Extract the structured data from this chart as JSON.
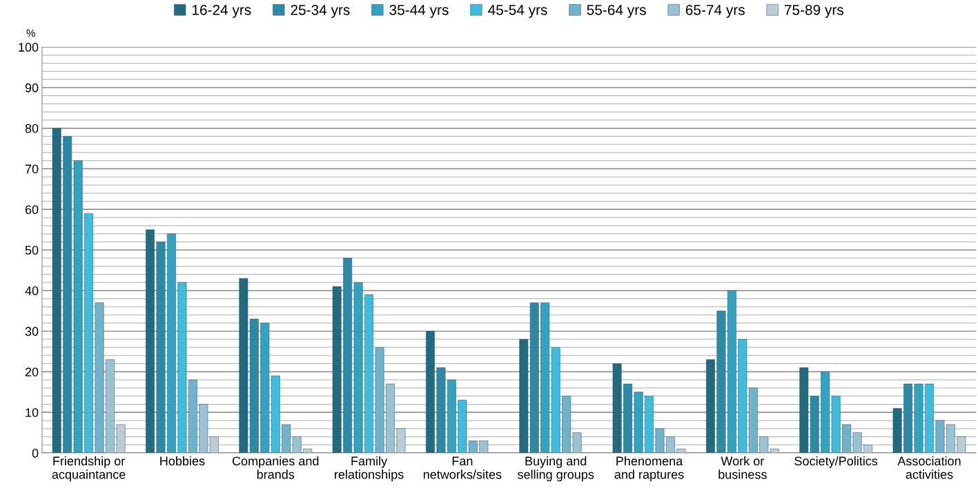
{
  "chart_data": {
    "type": "bar",
    "ylabel": "%",
    "categories": [
      "Friendship or\nacquaintance",
      "Hobbies",
      "Companies and\nbrands",
      "Family\nrelationships",
      "Fan\nnetworks/sites",
      "Buying and\nselling groups",
      "Phenomena\nand raptures",
      "Work or\nbusiness",
      "Society/Politics",
      "Association\nactivities"
    ],
    "series": [
      {
        "name": "16-24 yrs",
        "color": "#1f6b80",
        "values": [
          80,
          55,
          43,
          41,
          30,
          28,
          22,
          23,
          21,
          11
        ]
      },
      {
        "name": "25-34 yrs",
        "color": "#2a8aa6",
        "values": [
          78,
          52,
          33,
          48,
          21,
          37,
          17,
          35,
          14,
          17
        ]
      },
      {
        "name": "35-44 yrs",
        "color": "#2ea3c2",
        "values": [
          72,
          54,
          32,
          42,
          18,
          37,
          15,
          40,
          20,
          17
        ]
      },
      {
        "name": "45-54 yrs",
        "color": "#3bbde0",
        "values": [
          59,
          42,
          19,
          39,
          13,
          26,
          14,
          28,
          14,
          17
        ]
      },
      {
        "name": "55-64 yrs",
        "color": "#6eb3cc",
        "values": [
          37,
          18,
          7,
          26,
          3,
          14,
          6,
          16,
          7,
          8
        ]
      },
      {
        "name": "65-74 yrs",
        "color": "#98c3d4",
        "values": [
          23,
          12,
          4,
          17,
          3,
          5,
          4,
          4,
          5,
          7
        ]
      },
      {
        "name": "75-89 yrs",
        "color": "#b8cdd6",
        "values": [
          7,
          4,
          1,
          6,
          null,
          null,
          1,
          1,
          2,
          4
        ]
      }
    ],
    "ylim": [
      0,
      100
    ],
    "yticks": [
      0,
      {
        "value": 2,
        "label": null
      },
      {
        "value": 4,
        "label": null
      },
      {
        "value": 6,
        "label": null
      },
      {
        "value": 8,
        "label": null
      },
      10,
      {
        "value": 12,
        "label": null
      },
      {
        "value": 14,
        "label": null
      },
      {
        "value": 16,
        "label": null
      },
      {
        "value": 18,
        "label": null
      },
      20,
      {
        "value": 22,
        "label": null
      },
      {
        "value": 24,
        "label": null
      },
      {
        "value": 26,
        "label": null
      },
      {
        "value": 28,
        "label": null
      },
      30,
      {
        "value": 32,
        "label": null
      },
      {
        "value": 34,
        "label": null
      },
      {
        "value": 36,
        "label": null
      },
      {
        "value": 38,
        "label": null
      },
      40,
      {
        "value": 42,
        "label": null
      },
      {
        "value": 44,
        "label": null
      },
      {
        "value": 46,
        "label": null
      },
      {
        "value": 48,
        "label": null
      },
      50,
      {
        "value": 52,
        "label": null
      },
      {
        "value": 54,
        "label": null
      },
      {
        "value": 56,
        "label": null
      },
      {
        "value": 58,
        "label": null
      },
      60,
      {
        "value": 62,
        "label": null
      },
      {
        "value": 64,
        "label": null
      },
      {
        "value": 66,
        "label": null
      },
      {
        "value": 68,
        "label": null
      },
      70,
      {
        "value": 72,
        "label": null
      },
      {
        "value": 74,
        "label": null
      },
      {
        "value": 76,
        "label": null
      },
      {
        "value": 78,
        "label": null
      },
      80,
      {
        "value": 82,
        "label": null
      },
      {
        "value": 84,
        "label": null
      },
      {
        "value": 86,
        "label": null
      },
      {
        "value": 88,
        "label": null
      },
      90,
      {
        "value": 92,
        "label": null
      },
      {
        "value": 94,
        "label": null
      },
      {
        "value": 96,
        "label": null
      },
      {
        "value": 98,
        "label": null
      },
      100
    ],
    "grid": "y",
    "legend": "top"
  }
}
